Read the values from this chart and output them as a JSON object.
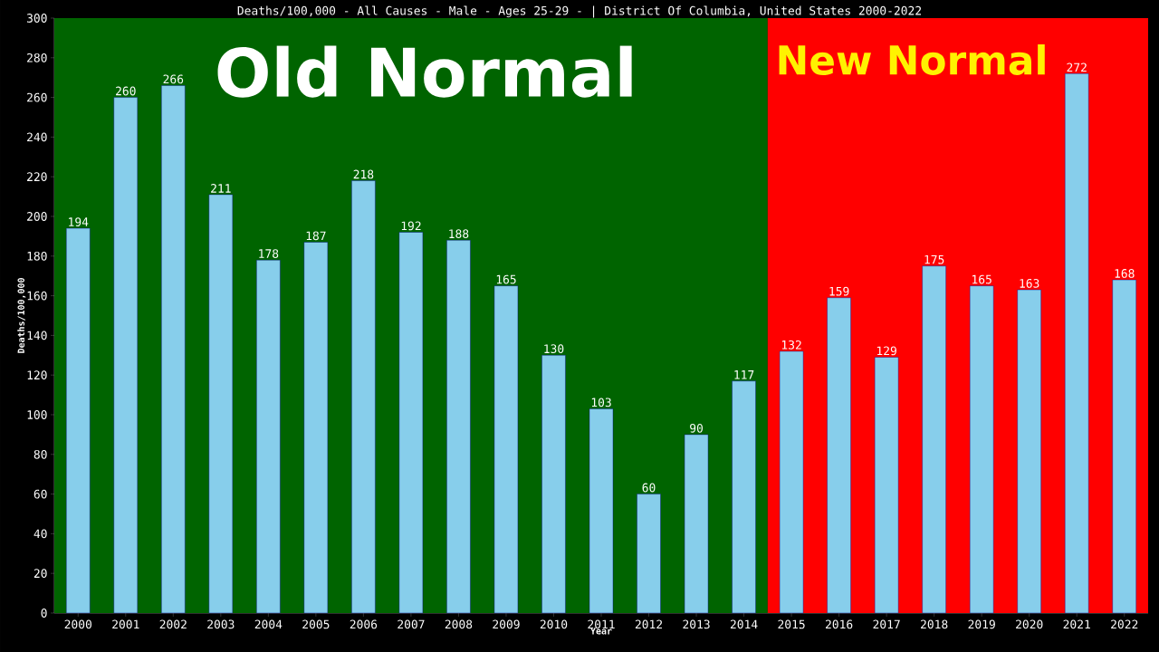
{
  "chart_data": {
    "type": "bar",
    "title": "Deaths/100,000 - All Causes - Male - Ages 25-29 -  | District Of Columbia, United States 2000-2022",
    "xlabel": "Year",
    "ylabel": "Deaths/100,000",
    "categories": [
      "2000",
      "2001",
      "2002",
      "2003",
      "2004",
      "2005",
      "2006",
      "2007",
      "2008",
      "2009",
      "2010",
      "2011",
      "2012",
      "2013",
      "2014",
      "2015",
      "2016",
      "2017",
      "2018",
      "2019",
      "2020",
      "2021",
      "2022"
    ],
    "values": [
      194,
      260,
      266,
      211,
      178,
      187,
      218,
      192,
      188,
      165,
      130,
      103,
      60,
      90,
      117,
      132,
      159,
      129,
      175,
      165,
      163,
      272,
      168
    ],
    "color": "#87ceeb",
    "ylim": [
      0,
      300
    ],
    "yticks": [
      0,
      20,
      40,
      60,
      80,
      100,
      120,
      140,
      160,
      180,
      200,
      220,
      240,
      260,
      280,
      300
    ],
    "bands": [
      {
        "axis": "x",
        "from": "2000",
        "to": "2014",
        "label": "Old Normal",
        "color": "#006400"
      },
      {
        "axis": "x",
        "from": "2015",
        "to": "2022",
        "label": "New Normal",
        "color": "#ff0000"
      }
    ],
    "data_labels": true
  }
}
